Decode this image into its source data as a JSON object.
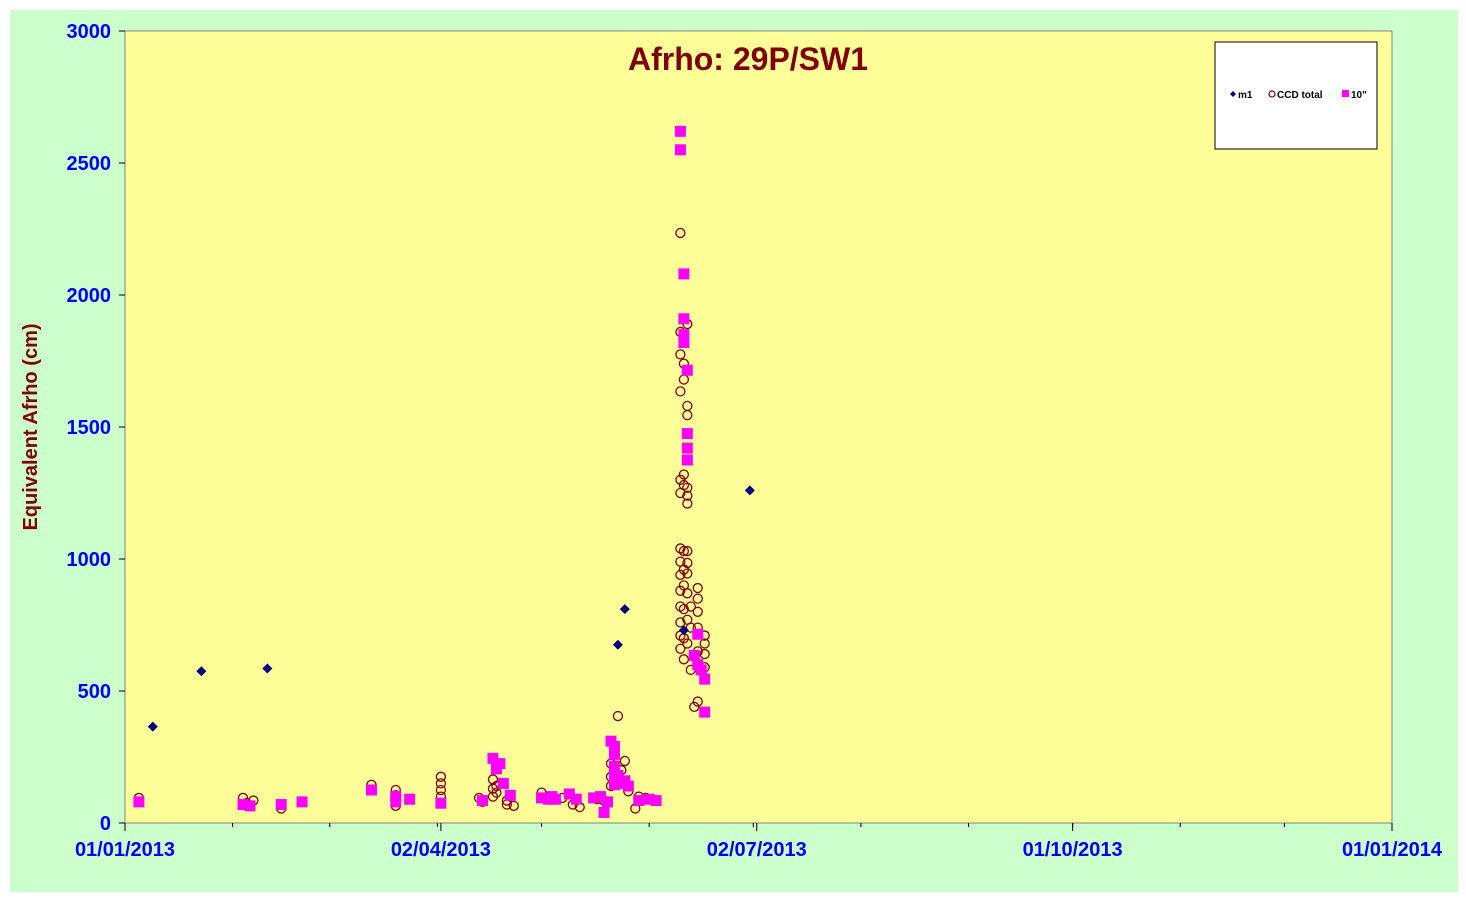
{
  "chart_data": {
    "type": "scatter",
    "title": "Afrho: 29P/SW1",
    "xlabel": "",
    "ylabel": "Equivalent  Afrho (cm)",
    "x_ticks": [
      "01/01/2013",
      "02/04/2013",
      "02/07/2013",
      "01/10/2013",
      "01/01/2014"
    ],
    "y_ticks": [
      "0",
      "500",
      "1000",
      "1500",
      "2000",
      "2500",
      "3000"
    ],
    "xlim": [
      "2013-01-01",
      "2014-01-01"
    ],
    "ylim": [
      0,
      3000
    ],
    "grid": false,
    "legend_position": "top-right",
    "colors": {
      "outer_background": "#ccffcc",
      "plot_background": "#ffff99",
      "axis_text": "#0000ff",
      "title_text": "#800000"
    },
    "series": [
      {
        "name": "m1",
        "marker": "diamond",
        "color": "#000080",
        "points": [
          [
            "2013-01-09",
            365
          ],
          [
            "2013-01-23",
            575
          ],
          [
            "2013-02-11",
            585
          ],
          [
            "2013-05-23",
            675
          ],
          [
            "2013-05-25",
            810
          ],
          [
            "2013-06-11",
            730
          ],
          [
            "2013-06-30",
            1260
          ]
        ]
      },
      {
        "name": "CCD total",
        "marker": "circle-open",
        "color": "#800000",
        "points": [
          [
            "2013-01-05",
            95
          ],
          [
            "2013-01-05",
            80
          ],
          [
            "2013-02-04",
            95
          ],
          [
            "2013-02-05",
            75
          ],
          [
            "2013-02-07",
            85
          ],
          [
            "2013-02-15",
            55
          ],
          [
            "2013-03-13",
            145
          ],
          [
            "2013-03-20",
            125
          ],
          [
            "2013-03-20",
            105
          ],
          [
            "2013-03-20",
            85
          ],
          [
            "2013-03-20",
            65
          ],
          [
            "2013-03-24",
            90
          ],
          [
            "2013-04-02",
            175
          ],
          [
            "2013-04-02",
            150
          ],
          [
            "2013-04-02",
            125
          ],
          [
            "2013-04-02",
            100
          ],
          [
            "2013-04-13",
            95
          ],
          [
            "2013-04-14",
            80
          ],
          [
            "2013-04-17",
            165
          ],
          [
            "2013-04-17",
            130
          ],
          [
            "2013-04-17",
            100
          ],
          [
            "2013-04-18",
            140
          ],
          [
            "2013-04-18",
            115
          ],
          [
            "2013-04-21",
            85
          ],
          [
            "2013-04-21",
            70
          ],
          [
            "2013-04-23",
            65
          ],
          [
            "2013-05-01",
            115
          ],
          [
            "2013-05-04",
            100
          ],
          [
            "2013-05-07",
            95
          ],
          [
            "2013-05-10",
            70
          ],
          [
            "2013-05-12",
            60
          ],
          [
            "2013-05-17",
            90
          ],
          [
            "2013-05-19",
            85
          ],
          [
            "2013-05-21",
            140
          ],
          [
            "2013-05-21",
            175
          ],
          [
            "2013-05-21",
            225
          ],
          [
            "2013-05-22",
            280
          ],
          [
            "2013-05-23",
            405
          ],
          [
            "2013-05-24",
            200
          ],
          [
            "2013-05-25",
            235
          ],
          [
            "2013-05-26",
            120
          ],
          [
            "2013-05-28",
            55
          ],
          [
            "2013-05-29",
            100
          ],
          [
            "2013-05-31",
            95
          ],
          [
            "2013-06-10",
            2235
          ],
          [
            "2013-06-10",
            1860
          ],
          [
            "2013-06-10",
            1775
          ],
          [
            "2013-06-10",
            1635
          ],
          [
            "2013-06-10",
            1300
          ],
          [
            "2013-06-10",
            1250
          ],
          [
            "2013-06-10",
            1040
          ],
          [
            "2013-06-10",
            990
          ],
          [
            "2013-06-10",
            940
          ],
          [
            "2013-06-10",
            880
          ],
          [
            "2013-06-10",
            820
          ],
          [
            "2013-06-10",
            760
          ],
          [
            "2013-06-10",
            710
          ],
          [
            "2013-06-10",
            660
          ],
          [
            "2013-06-11",
            1740
          ],
          [
            "2013-06-11",
            1680
          ],
          [
            "2013-06-11",
            1320
          ],
          [
            "2013-06-11",
            1280
          ],
          [
            "2013-06-11",
            1030
          ],
          [
            "2013-06-11",
            960
          ],
          [
            "2013-06-11",
            900
          ],
          [
            "2013-06-11",
            810
          ],
          [
            "2013-06-11",
            700
          ],
          [
            "2013-06-11",
            620
          ],
          [
            "2013-06-12",
            1890
          ],
          [
            "2013-06-12",
            1580
          ],
          [
            "2013-06-12",
            1545
          ],
          [
            "2013-06-12",
            1270
          ],
          [
            "2013-06-12",
            1240
          ],
          [
            "2013-06-12",
            1210
          ],
          [
            "2013-06-12",
            1030
          ],
          [
            "2013-06-12",
            985
          ],
          [
            "2013-06-12",
            945
          ],
          [
            "2013-06-12",
            870
          ],
          [
            "2013-06-12",
            770
          ],
          [
            "2013-06-12",
            680
          ],
          [
            "2013-06-13",
            820
          ],
          [
            "2013-06-13",
            740
          ],
          [
            "2013-06-13",
            580
          ],
          [
            "2013-06-14",
            440
          ],
          [
            "2013-06-15",
            890
          ],
          [
            "2013-06-15",
            850
          ],
          [
            "2013-06-15",
            800
          ],
          [
            "2013-06-15",
            740
          ],
          [
            "2013-06-15",
            650
          ],
          [
            "2013-06-15",
            460
          ],
          [
            "2013-06-17",
            710
          ],
          [
            "2013-06-17",
            680
          ],
          [
            "2013-06-17",
            640
          ],
          [
            "2013-06-17",
            590
          ],
          [
            "2013-06-17",
            550
          ]
        ]
      },
      {
        "name": "10\"",
        "marker": "square",
        "color": "#ff00ff",
        "points": [
          [
            "2013-01-05",
            80
          ],
          [
            "2013-02-04",
            70
          ],
          [
            "2013-02-06",
            65
          ],
          [
            "2013-02-15",
            70
          ],
          [
            "2013-02-21",
            80
          ],
          [
            "2013-03-13",
            125
          ],
          [
            "2013-03-20",
            100
          ],
          [
            "2013-03-20",
            80
          ],
          [
            "2013-03-24",
            90
          ],
          [
            "2013-04-02",
            75
          ],
          [
            "2013-04-14",
            85
          ],
          [
            "2013-04-17",
            245
          ],
          [
            "2013-04-18",
            205
          ],
          [
            "2013-04-19",
            225
          ],
          [
            "2013-04-20",
            150
          ],
          [
            "2013-04-22",
            105
          ],
          [
            "2013-05-01",
            95
          ],
          [
            "2013-05-03",
            90
          ],
          [
            "2013-05-04",
            100
          ],
          [
            "2013-05-05",
            90
          ],
          [
            "2013-05-09",
            110
          ],
          [
            "2013-05-11",
            90
          ],
          [
            "2013-05-16",
            95
          ],
          [
            "2013-05-18",
            100
          ],
          [
            "2013-05-19",
            40
          ],
          [
            "2013-05-20",
            80
          ],
          [
            "2013-05-21",
            310
          ],
          [
            "2013-05-22",
            290
          ],
          [
            "2013-05-22",
            260
          ],
          [
            "2013-05-22",
            215
          ],
          [
            "2013-05-22",
            175
          ],
          [
            "2013-05-22",
            145
          ],
          [
            "2013-05-23",
            180
          ],
          [
            "2013-05-24",
            150
          ],
          [
            "2013-05-25",
            160
          ],
          [
            "2013-05-26",
            140
          ],
          [
            "2013-05-29",
            85
          ],
          [
            "2013-06-01",
            90
          ],
          [
            "2013-06-03",
            85
          ],
          [
            "2013-06-10",
            2620
          ],
          [
            "2013-06-10",
            2550
          ],
          [
            "2013-06-11",
            2080
          ],
          [
            "2013-06-11",
            1910
          ],
          [
            "2013-06-11",
            1850
          ],
          [
            "2013-06-11",
            1820
          ],
          [
            "2013-06-12",
            1715
          ],
          [
            "2013-06-12",
            1475
          ],
          [
            "2013-06-12",
            1420
          ],
          [
            "2013-06-12",
            1375
          ],
          [
            "2013-06-14",
            635
          ],
          [
            "2013-06-15",
            715
          ],
          [
            "2013-06-15",
            600
          ],
          [
            "2013-06-16",
            580
          ],
          [
            "2013-06-17",
            545
          ],
          [
            "2013-06-17",
            420
          ]
        ]
      }
    ]
  }
}
